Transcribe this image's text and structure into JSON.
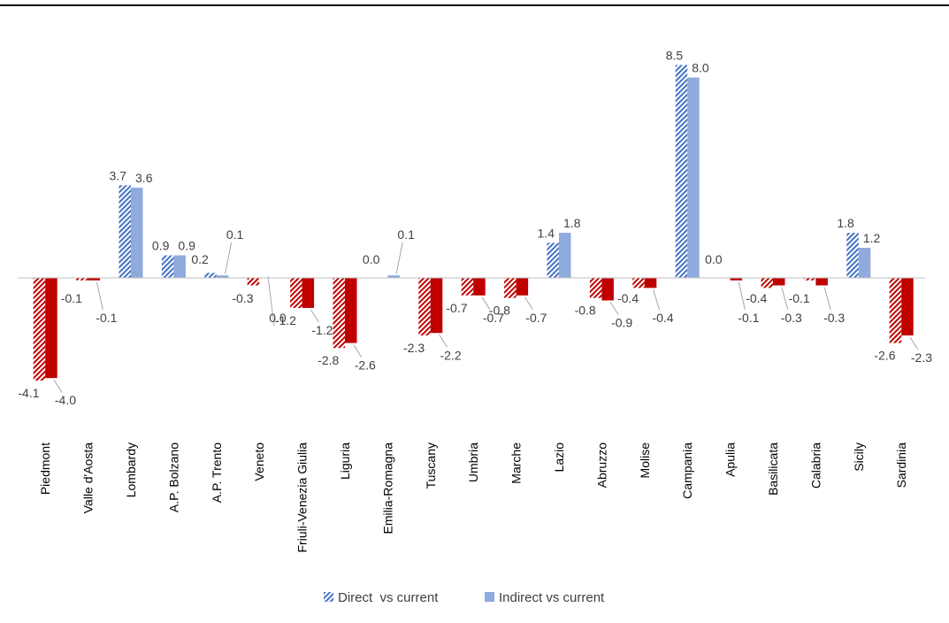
{
  "chart_data": {
    "type": "bar",
    "categories": [
      "Piedmont",
      "Valle d'Aosta",
      "Lombardy",
      "A.P. Bolzano",
      "A.P. Trento",
      "Veneto",
      "Friuli-Venezia Giulia",
      "Liguria",
      "Emilia-Romagna",
      "Tuscany",
      "Umbria",
      "Marche",
      "Lazio",
      "Abruzzo",
      "Molise",
      "Campania",
      "Apulia",
      "Basilicata",
      "Calabria",
      "Sicily",
      "Sardinia"
    ],
    "series": [
      {
        "name": "Direct  vs current",
        "pattern": "hatched",
        "values": [
          -4.1,
          -0.1,
          3.7,
          0.9,
          0.2,
          -0.3,
          -1.2,
          -2.8,
          0.0,
          -2.3,
          -0.7,
          -0.8,
          1.4,
          -0.8,
          -0.4,
          8.5,
          0.0,
          -0.4,
          -0.1,
          1.8,
          -2.6
        ],
        "labels": [
          "-4.1",
          "-0.1",
          "3.7",
          "0.9",
          "0.2",
          "-0.3",
          "-1.2",
          "-2.8",
          "0.0",
          "-2.3",
          "-0.7",
          "-0.8",
          "1.4",
          "-0.8",
          "-0.4",
          "8.5",
          "0.0",
          "-0.4",
          "-0.1",
          "1.8",
          "-2.6"
        ]
      },
      {
        "name": "Indirect vs current",
        "pattern": "solid",
        "values": [
          -4.0,
          -0.1,
          3.6,
          0.9,
          0.1,
          0.0,
          -1.2,
          -2.6,
          0.1,
          -2.2,
          -0.7,
          -0.7,
          1.8,
          -0.9,
          -0.4,
          8.0,
          -0.1,
          -0.3,
          -0.3,
          1.2,
          -2.3
        ],
        "labels": [
          "-4.0",
          "-0.1",
          "3.6",
          "0.9",
          "0.1",
          "0.0",
          "-1.2",
          "-2.6",
          "0.1",
          "-2.2",
          "-0.7",
          "-0.7",
          "1.8",
          "-0.9",
          "-0.4",
          "8.0",
          "-0.1",
          "-0.3",
          "-0.3",
          "1.2",
          "-2.3"
        ]
      }
    ],
    "colors": {
      "positive_direct": "#4472c4",
      "positive_indirect": "#8faadc",
      "negative_direct": "#c00000",
      "negative_indirect": "#c00000"
    },
    "title": "",
    "xlabel": "",
    "ylabel": "",
    "ylim": [
      -4.5,
      9
    ],
    "grid": false,
    "legend_position": "bottom"
  }
}
